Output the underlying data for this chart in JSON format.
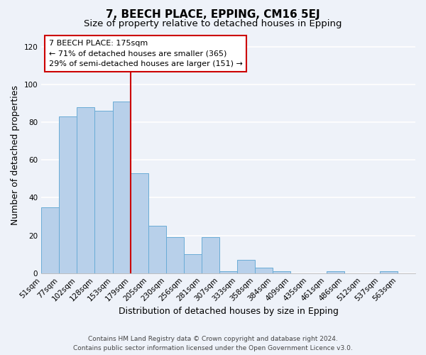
{
  "title": "7, BEECH PLACE, EPPING, CM16 5EJ",
  "subtitle": "Size of property relative to detached houses in Epping",
  "xlabel": "Distribution of detached houses by size in Epping",
  "ylabel": "Number of detached properties",
  "bar_values": [
    35,
    83,
    88,
    86,
    91,
    53,
    25,
    19,
    10,
    19,
    1,
    7,
    3,
    1,
    0,
    0,
    1,
    0,
    0,
    1,
    0
  ],
  "bar_labels": [
    "51sqm",
    "77sqm",
    "102sqm",
    "128sqm",
    "153sqm",
    "179sqm",
    "205sqm",
    "230sqm",
    "256sqm",
    "281sqm",
    "307sqm",
    "333sqm",
    "358sqm",
    "384sqm",
    "409sqm",
    "435sqm",
    "461sqm",
    "486sqm",
    "512sqm",
    "537sqm",
    "563sqm"
  ],
  "bar_color": "#b8d0ea",
  "bar_edge_color": "#6aacd6",
  "redline_index": 5,
  "ylim": [
    0,
    125
  ],
  "yticks": [
    0,
    20,
    40,
    60,
    80,
    100,
    120
  ],
  "annotation_line1": "7 BEECH PLACE: 175sqm",
  "annotation_line2": "← 71% of detached houses are smaller (365)",
  "annotation_line3": "29% of semi-detached houses are larger (151) →",
  "annotation_box_color": "#ffffff",
  "annotation_box_edge": "#cc0000",
  "footer_line1": "Contains HM Land Registry data © Crown copyright and database right 2024.",
  "footer_line2": "Contains public sector information licensed under the Open Government Licence v3.0.",
  "background_color": "#eef2f9",
  "grid_color": "#ffffff",
  "title_fontsize": 11,
  "subtitle_fontsize": 9.5,
  "axis_label_fontsize": 9,
  "tick_fontsize": 7.5,
  "annotation_fontsize": 8,
  "footer_fontsize": 6.5
}
